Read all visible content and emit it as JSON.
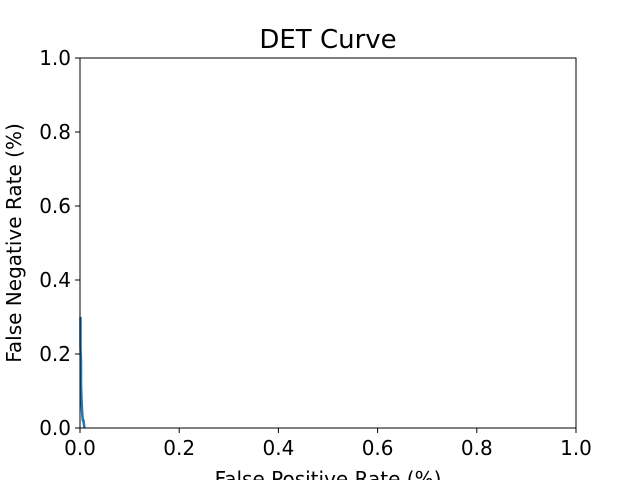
{
  "chart_data": {
    "type": "line",
    "title": "DET Curve",
    "xlabel": "False Positive Rate (%)",
    "ylabel": "False Negative Rate (%)",
    "xlim": [
      0.0,
      1.0
    ],
    "ylim": [
      0.0,
      1.0
    ],
    "xticks": [
      "0.0",
      "0.2",
      "0.4",
      "0.6",
      "0.8",
      "1.0"
    ],
    "yticks": [
      "0.0",
      "0.2",
      "0.4",
      "0.6",
      "0.8",
      "1.0"
    ],
    "grid": false,
    "series": [
      {
        "color": "#1f77b4",
        "x": [
          0.001,
          0.001,
          0.002,
          0.002,
          0.003,
          0.004,
          0.005,
          0.006,
          0.007,
          0.008,
          0.009
        ],
        "y": [
          0.3,
          0.22,
          0.18,
          0.12,
          0.08,
          0.05,
          0.03,
          0.02,
          0.02,
          0.01,
          0.0
        ]
      }
    ]
  }
}
